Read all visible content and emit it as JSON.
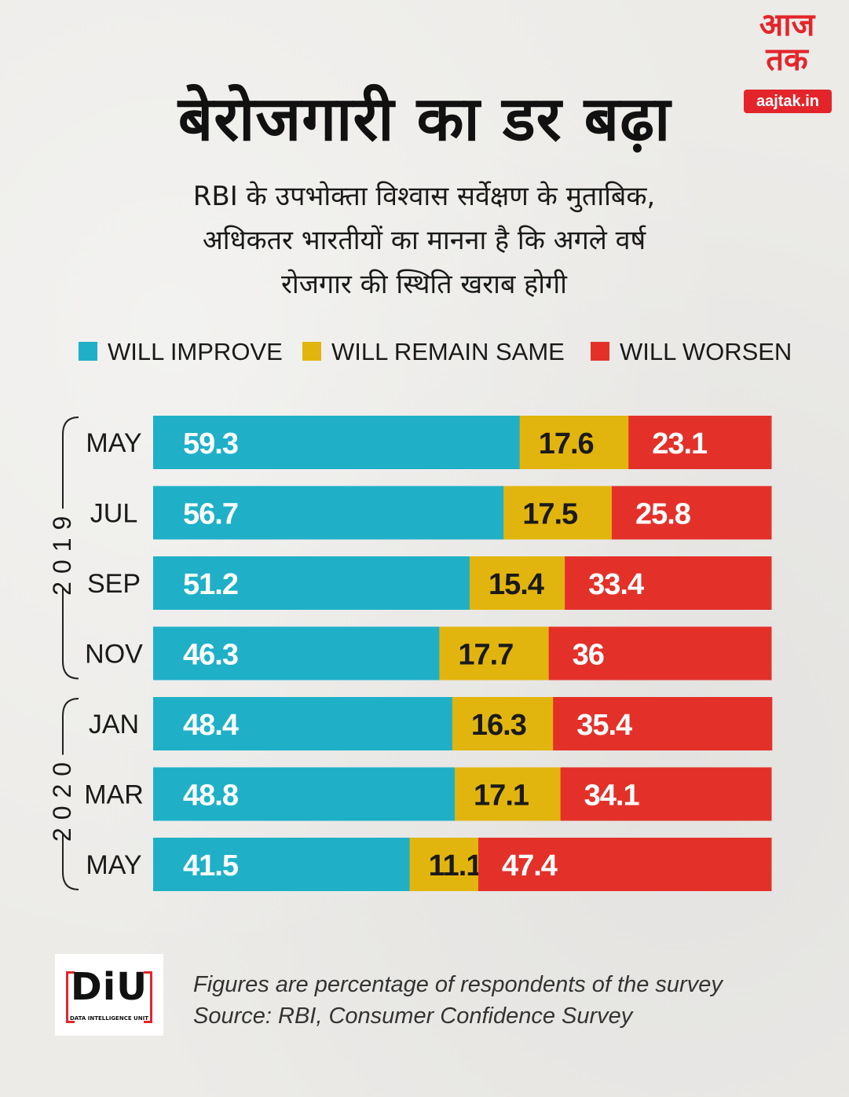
{
  "logo": {
    "line1": "आज",
    "line2": "तक",
    "url": "aajtak.in"
  },
  "title": "बेरोजगारी का डर बढ़ा",
  "subtitle_lines": [
    "RBI के उपभोक्ता विश्वास सर्वेक्षण के मुताबिक,",
    "अधिकतर भारतीयों का मानना है कि अगले वर्ष",
    "रोजगार की स्थिति खराब होगी"
  ],
  "legend": [
    {
      "label": "WILL IMPROVE",
      "color": "#1fb0c8"
    },
    {
      "label": "WILL REMAIN SAME",
      "color": "#e2b50e"
    },
    {
      "label": "WILL WORSEN",
      "color": "#e3312a"
    }
  ],
  "chart_data": {
    "type": "bar",
    "orientation": "horizontal-stacked-100",
    "categories": [
      "MAY",
      "JUL",
      "SEP",
      "NOV",
      "JAN",
      "MAR",
      "MAY"
    ],
    "year_groups": [
      {
        "label": "2019",
        "categories": [
          "MAY",
          "JUL",
          "SEP",
          "NOV"
        ]
      },
      {
        "label": "2020",
        "categories": [
          "JAN",
          "MAR",
          "MAY"
        ]
      }
    ],
    "series": [
      {
        "name": "WILL IMPROVE",
        "color": "#1fb0c8",
        "values": [
          59.3,
          56.7,
          51.2,
          46.3,
          48.4,
          48.8,
          41.5
        ]
      },
      {
        "name": "WILL REMAIN SAME",
        "color": "#e2b50e",
        "values": [
          17.6,
          17.5,
          15.4,
          17.7,
          16.3,
          17.1,
          11.1
        ]
      },
      {
        "name": "WILL WORSEN",
        "color": "#e3312a",
        "values": [
          23.1,
          25.8,
          33.4,
          36,
          35.4,
          34.1,
          47.4
        ]
      }
    ],
    "data_labels": [
      [
        "59.3",
        "17.6",
        "23.1"
      ],
      [
        "56.7",
        "17.5",
        "25.8"
      ],
      [
        "51.2",
        "15.4",
        "33.4"
      ],
      [
        "46.3",
        "17.7",
        "36"
      ],
      [
        "48.4",
        "16.3",
        "35.4"
      ],
      [
        "48.8",
        "17.1",
        "34.1"
      ],
      [
        "41.5",
        "11.1",
        "47.4"
      ]
    ],
    "xlim": [
      0,
      100
    ]
  },
  "notes": {
    "line1": "Figures are percentage of respondents of the survey",
    "line2": "Source: RBI, Consumer Confidence Survey"
  },
  "diu": {
    "text": "DiU",
    "sub": "DATA INTELLIGENCE UNIT"
  }
}
